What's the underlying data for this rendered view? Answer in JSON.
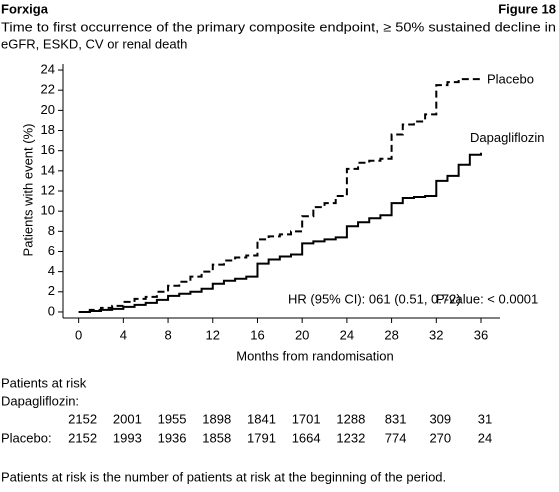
{
  "header": {
    "left": "Forxiga",
    "right": "Figure 18"
  },
  "chart_data": {
    "type": "line",
    "step": "post",
    "title": [
      "Time to first occurrence of the primary composite endpoint, ≥ 50% sustained decline in",
      "eGFR, ESKD, CV or renal death"
    ],
    "x_label": "Months from randomisation",
    "y_label": "Patients with event (%)",
    "x": [
      0,
      1,
      2,
      3,
      4,
      5,
      6,
      7,
      8,
      9,
      10,
      11,
      12,
      13,
      14,
      15,
      16,
      17,
      18,
      19,
      20,
      21,
      22,
      23,
      24,
      25,
      26,
      27,
      28,
      29,
      30,
      31,
      32,
      33,
      34,
      35,
      36
    ],
    "series": [
      {
        "name": "Placebo",
        "color": "#000000",
        "dash": true,
        "values": [
          0,
          0.2,
          0.4,
          0.6,
          1.0,
          1.3,
          1.5,
          2.0,
          2.6,
          3.0,
          3.5,
          4.0,
          4.7,
          5.1,
          5.4,
          5.6,
          7.2,
          7.5,
          7.7,
          8.0,
          9.5,
          10.4,
          10.8,
          11.5,
          14.2,
          14.8,
          15.0,
          15.2,
          17.6,
          18.6,
          18.9,
          19.6,
          22.5,
          22.8,
          23.1,
          23.1,
          23.1
        ]
      },
      {
        "name": "Dapagliflozin",
        "color": "#000000",
        "dash": false,
        "values": [
          0,
          0.1,
          0.2,
          0.3,
          0.5,
          0.7,
          0.9,
          1.2,
          1.6,
          1.8,
          2.0,
          2.3,
          2.8,
          3.1,
          3.3,
          3.5,
          4.8,
          5.2,
          5.5,
          5.7,
          6.8,
          7.0,
          7.2,
          7.4,
          8.5,
          8.9,
          9.3,
          9.6,
          10.8,
          11.3,
          11.4,
          11.5,
          13.0,
          13.5,
          14.6,
          15.6,
          15.8
        ]
      }
    ],
    "xlim": [
      -1.4,
      37.7
    ],
    "ylim": [
      -0.6,
      24.6
    ],
    "xticks": [
      0,
      4,
      8,
      12,
      16,
      20,
      24,
      28,
      32,
      36
    ],
    "yticks": [
      0,
      2,
      4,
      6,
      8,
      10,
      12,
      14,
      16,
      18,
      20,
      22,
      24
    ],
    "annotations": [
      "HR (95% CI): 061 (0.51, 0.72)",
      "P-value: < 0.0001"
    ]
  },
  "risk_table": {
    "title": "Patients at risk",
    "rows": [
      {
        "label": "Dapagliflozin:",
        "values": [
          2152,
          2001,
          1955,
          1898,
          1841,
          1701,
          1288,
          831,
          309,
          31
        ]
      },
      {
        "label": "Placebo:",
        "values": [
          2152,
          1993,
          1936,
          1858,
          1791,
          1664,
          1232,
          774,
          270,
          24
        ]
      }
    ]
  },
  "footnote": "Patients at risk is the number of patients at risk at the beginning of the period."
}
